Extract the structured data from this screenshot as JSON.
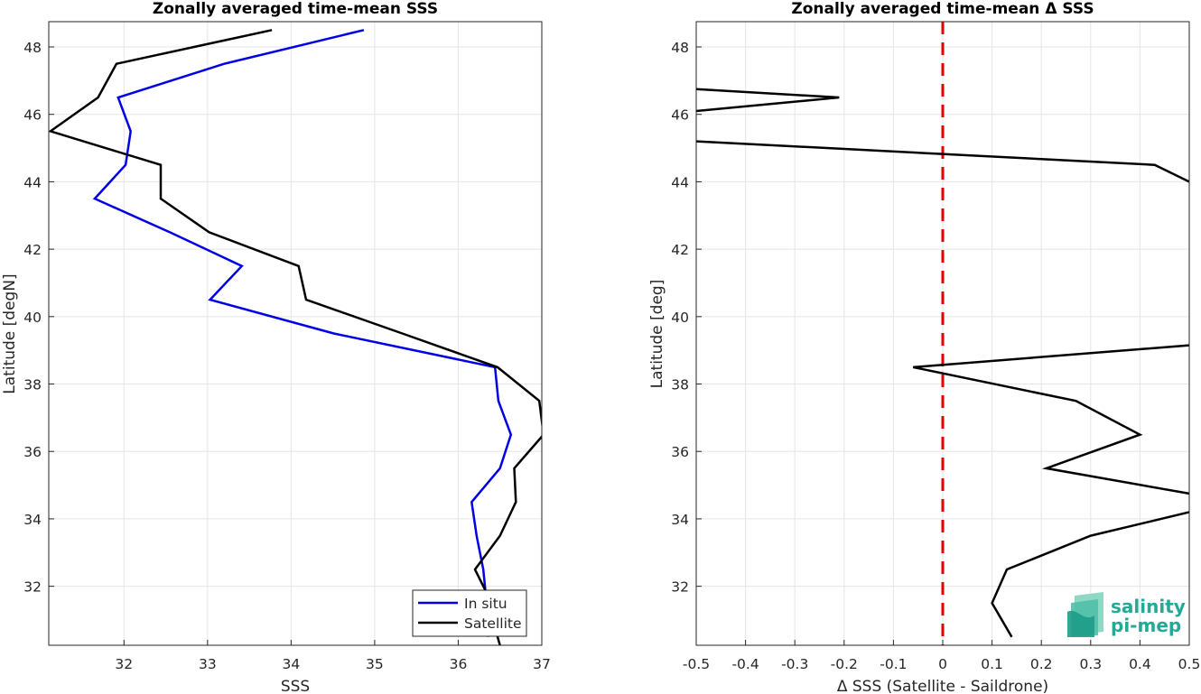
{
  "chart_data": [
    {
      "type": "line",
      "title": "Zonally averaged time-mean SSS",
      "xlabel": "SSS",
      "ylabel": "Latitude [degN]",
      "xlim": [
        31.1,
        37.0
      ],
      "ylim": [
        30.25,
        48.75
      ],
      "xticks": [
        32,
        33,
        34,
        35,
        36,
        37
      ],
      "yticks": [
        32,
        34,
        36,
        38,
        40,
        42,
        44,
        46,
        48
      ],
      "grid": true,
      "legend_position": "bottom-right",
      "series": [
        {
          "name": "In situ",
          "color": "#0000e6",
          "points": [
            [
              34.87,
              48.5
            ],
            [
              33.2,
              47.5
            ],
            [
              31.93,
              46.5
            ],
            [
              32.08,
              45.5
            ],
            [
              32.02,
              44.5
            ],
            [
              31.65,
              43.5
            ],
            [
              32.55,
              42.5
            ],
            [
              33.41,
              41.5
            ],
            [
              33.03,
              40.5
            ],
            [
              34.51,
              39.5
            ],
            [
              36.44,
              38.5
            ],
            [
              36.48,
              37.5
            ],
            [
              36.63,
              36.5
            ],
            [
              36.5,
              35.5
            ],
            [
              36.16,
              34.5
            ],
            [
              36.22,
              33.5
            ],
            [
              36.3,
              32.5
            ],
            [
              36.34,
              31.5
            ],
            [
              36.36,
              30.5
            ]
          ]
        },
        {
          "name": "Satellite",
          "color": "#000000",
          "points": [
            [
              33.77,
              48.5
            ],
            [
              31.91,
              47.5
            ],
            [
              31.69,
              46.5
            ],
            [
              31.12,
              45.5
            ],
            [
              32.44,
              44.5
            ],
            [
              32.44,
              43.5
            ],
            [
              33.02,
              42.5
            ],
            [
              34.09,
              41.5
            ],
            [
              34.18,
              40.5
            ],
            [
              35.33,
              39.5
            ],
            [
              36.47,
              38.5
            ],
            [
              36.97,
              37.5
            ],
            [
              37.02,
              36.5
            ],
            [
              36.67,
              35.5
            ],
            [
              36.69,
              34.5
            ],
            [
              36.5,
              33.5
            ],
            [
              36.2,
              32.5
            ],
            [
              36.4,
              31.5
            ],
            [
              36.47,
              30.5
            ],
            [
              36.5,
              30.25
            ]
          ]
        }
      ]
    },
    {
      "type": "line",
      "title": "Zonally averaged time-mean Δ SSS",
      "xlabel": "Δ SSS (Satellite - Saildrone)",
      "ylabel": "Latitude [deg]",
      "xlim": [
        -0.5,
        0.5
      ],
      "ylim": [
        30.25,
        48.75
      ],
      "xticks": [
        "-0.5",
        "-0.4",
        "-0.3",
        "-0.2",
        "-0.1",
        "0",
        "0.1",
        "0.2",
        "0.3",
        "0.4",
        "0.5"
      ],
      "yticks": [
        32,
        34,
        36,
        38,
        40,
        42,
        44,
        46,
        48
      ],
      "grid": true,
      "reference_line": {
        "x": 0,
        "color": "#e60000",
        "style": "dashed"
      },
      "series": [
        {
          "name": "",
          "color": "#000000",
          "segments": [
            [
              [
                -0.5,
                46.75
              ],
              [
                -0.21,
                46.5
              ],
              [
                -0.5,
                46.1
              ]
            ],
            [
              [
                -0.5,
                45.2
              ],
              [
                0.43,
                44.5
              ],
              [
                0.5,
                44.0
              ]
            ],
            [
              [
                0.5,
                39.15
              ],
              [
                -0.06,
                38.5
              ],
              [
                0.27,
                37.5
              ],
              [
                0.4,
                36.5
              ],
              [
                0.21,
                35.5
              ],
              [
                0.5,
                34.75
              ]
            ],
            [
              [
                0.5,
                34.2
              ],
              [
                0.3,
                33.5
              ],
              [
                0.13,
                32.5
              ],
              [
                0.1,
                31.5
              ],
              [
                0.14,
                30.5
              ]
            ]
          ]
        }
      ]
    }
  ],
  "legend": {
    "entries": [
      "In situ",
      "Satellite"
    ]
  },
  "logo": {
    "line1": "salinity",
    "line2": "pi-mep"
  }
}
